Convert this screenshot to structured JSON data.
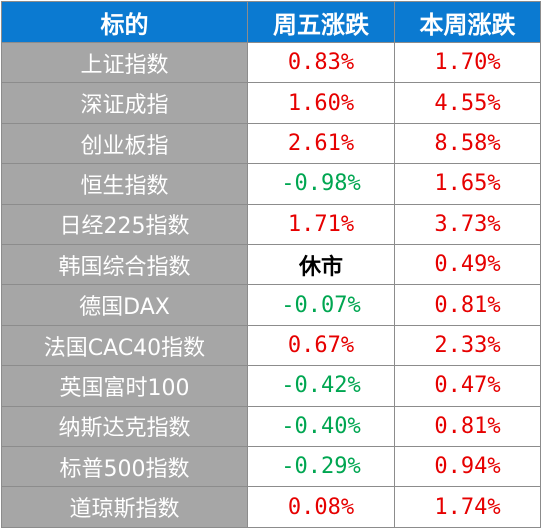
{
  "table": {
    "headers": [
      "标的",
      "周五涨跌",
      "本周涨跌"
    ],
    "rows": [
      {
        "name": "上证指数",
        "friday": "0.83%",
        "week": "1.70%",
        "friday_dir": "up",
        "week_dir": "up"
      },
      {
        "name": "深证成指",
        "friday": "1.60%",
        "week": "4.55%",
        "friday_dir": "up",
        "week_dir": "up"
      },
      {
        "name": "创业板指",
        "friday": "2.61%",
        "week": "8.58%",
        "friday_dir": "up",
        "week_dir": "up"
      },
      {
        "name": "恒生指数",
        "friday": "-0.98%",
        "week": "1.65%",
        "friday_dir": "down",
        "week_dir": "up"
      },
      {
        "name": "日经225指数",
        "friday": "1.71%",
        "week": "3.73%",
        "friday_dir": "up",
        "week_dir": "up"
      },
      {
        "name": "韩国综合指数",
        "friday": "休市",
        "week": "0.49%",
        "friday_dir": "closed",
        "week_dir": "up"
      },
      {
        "name": "德国DAX",
        "friday": "-0.07%",
        "week": "0.81%",
        "friday_dir": "down",
        "week_dir": "up"
      },
      {
        "name": "法国CAC40指数",
        "friday": "0.67%",
        "week": "2.33%",
        "friday_dir": "up",
        "week_dir": "up"
      },
      {
        "name": "英国富时100",
        "friday": "-0.42%",
        "week": "0.47%",
        "friday_dir": "down",
        "week_dir": "up"
      },
      {
        "name": "纳斯达克指数",
        "friday": "-0.40%",
        "week": "0.81%",
        "friday_dir": "down",
        "week_dir": "up"
      },
      {
        "name": "标普500指数",
        "friday": "-0.29%",
        "week": "0.94%",
        "friday_dir": "down",
        "week_dir": "up"
      },
      {
        "name": "道琼斯指数",
        "friday": "0.08%",
        "week": "1.74%",
        "friday_dir": "up",
        "week_dir": "up"
      }
    ]
  },
  "colors": {
    "header_bg": "#0b7ad1",
    "name_bg": "#a6a6a6",
    "up": "#e60000",
    "down": "#00a651"
  }
}
